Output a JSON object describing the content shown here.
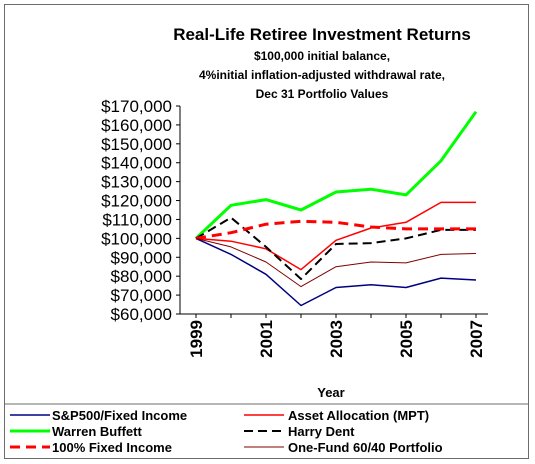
{
  "chart_data": {
    "type": "line",
    "title": "Real-Life Retiree Investment Returns",
    "subtitle_lines": [
      "$100,000 initial balance,",
      "4%initial inflation-adjusted withdrawal rate,",
      "Dec 31 Portfolio Values"
    ],
    "xlabel": "Year",
    "ylabel": "",
    "x": [
      1999,
      2000,
      2001,
      2002,
      2003,
      2004,
      2005,
      2006,
      2007
    ],
    "x_tick_labels": [
      "1999",
      "2001",
      "2003",
      "2005",
      "2007"
    ],
    "x_tick_values": [
      1999,
      2001,
      2003,
      2005,
      2007
    ],
    "ylim": [
      60000,
      170000
    ],
    "y_ticks": [
      60000,
      70000,
      80000,
      90000,
      100000,
      110000,
      120000,
      130000,
      140000,
      150000,
      160000,
      170000
    ],
    "y_tick_labels": [
      "$60,000",
      "$70,000",
      "$80,000",
      "$90,000",
      "$100,000",
      "$110,000",
      "$120,000",
      "$130,000",
      "$140,000",
      "$150,000",
      "$160,000",
      "$170,000"
    ],
    "grid": false,
    "legend_position": "bottom",
    "series": [
      {
        "name": "S&P500/Fixed Income",
        "color": "#000080",
        "style": "solid",
        "width": 1.5,
        "values": [
          100000,
          91500,
          81000,
          64500,
          74000,
          75500,
          74000,
          79000,
          78000
        ]
      },
      {
        "name": "Asset Allocation (MPT)",
        "color": "#ff0000",
        "style": "solid",
        "width": 1.5,
        "values": [
          100000,
          98500,
          94500,
          83500,
          99000,
          105500,
          108500,
          119000,
          119000
        ]
      },
      {
        "name": "Warren Buffett",
        "color": "#00ff00",
        "style": "solid",
        "width": 3,
        "values": [
          100000,
          117500,
          120500,
          115000,
          124500,
          126000,
          123000,
          141000,
          167000
        ]
      },
      {
        "name": "Harry Dent",
        "color": "#000000",
        "style": "dash",
        "width": 2,
        "values": [
          100000,
          111000,
          95500,
          78500,
          97000,
          97500,
          100000,
          104500,
          104500
        ]
      },
      {
        "name": "100% Fixed Income",
        "color": "#ff0000",
        "style": "dash",
        "width": 3,
        "values": [
          100000,
          103000,
          107500,
          109000,
          108500,
          106000,
          105000,
          105000,
          105000
        ]
      },
      {
        "name": "One-Fund 60/40 Portfolio",
        "color": "#800000",
        "style": "solid",
        "width": 1,
        "values": [
          100000,
          95500,
          87500,
          74500,
          85000,
          87500,
          87000,
          91500,
          92000
        ]
      }
    ]
  }
}
